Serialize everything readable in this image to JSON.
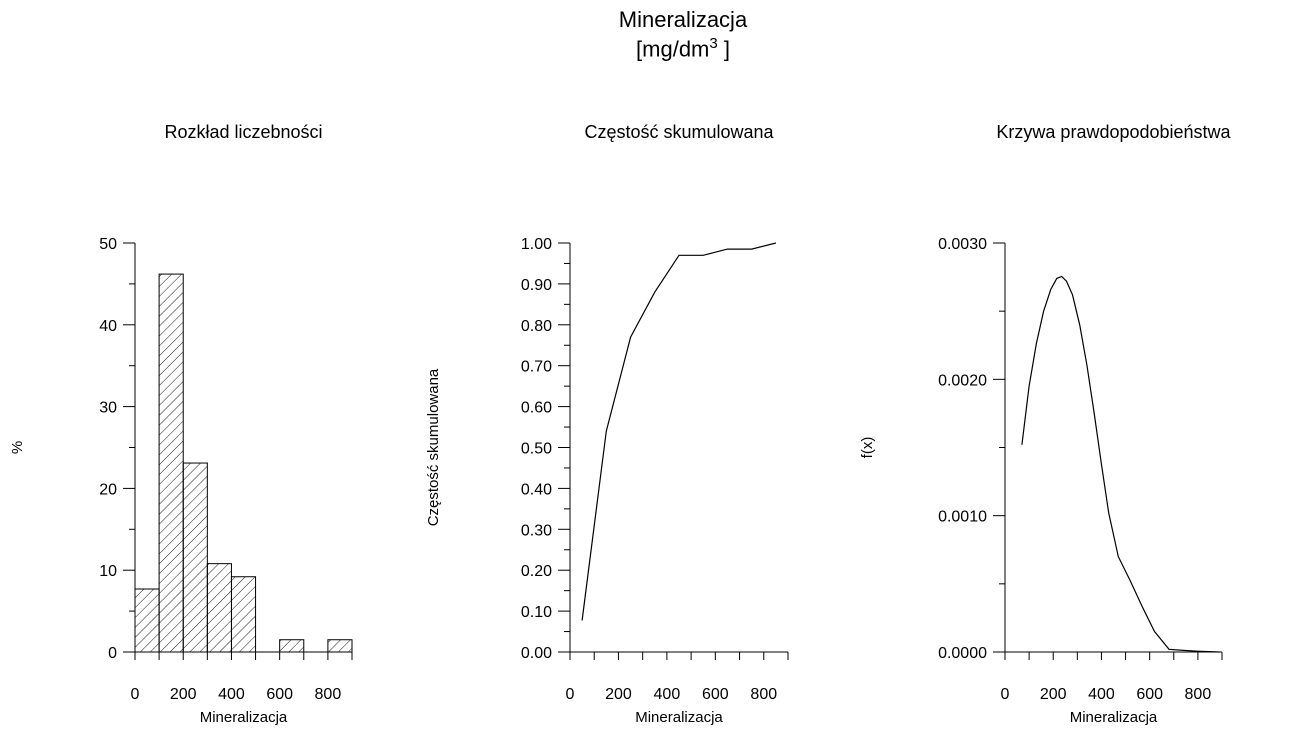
{
  "figure": {
    "title_line1": "Mineralizacja",
    "title_line2_prefix": "[mg/dm",
    "title_line2_sup": "3",
    "title_line2_suffix": " ]"
  },
  "chart_data": [
    {
      "type": "bar",
      "title": "Rozkład liczebności",
      "xlabel": "Mineralizacja",
      "ylabel": "%",
      "bin_edges": [
        0,
        100,
        200,
        300,
        400,
        500,
        600,
        700,
        800,
        900
      ],
      "values": [
        7.7,
        46.2,
        23.1,
        10.8,
        9.2,
        0,
        1.5,
        0,
        1.5
      ],
      "xlim": [
        0,
        900
      ],
      "ylim": [
        0,
        50
      ],
      "xticks": [
        "0",
        "200",
        "400",
        "600",
        "800"
      ],
      "yticks": [
        "0",
        "10",
        "20",
        "30",
        "40",
        "50"
      ],
      "fill": "hatched"
    },
    {
      "type": "line",
      "title": "Częstość skumulowana",
      "xlabel": "Mineralizacja",
      "ylabel": "Częstość skumulowana",
      "x": [
        50,
        150,
        250,
        350,
        450,
        550,
        650,
        750,
        850
      ],
      "y": [
        0.077,
        0.54,
        0.77,
        0.88,
        0.97,
        0.97,
        0.985,
        0.985,
        1.0
      ],
      "xlim": [
        0,
        900
      ],
      "ylim": [
        0,
        1
      ],
      "xticks": [
        "0",
        "200",
        "400",
        "600",
        "800"
      ],
      "yticks": [
        "0.00",
        "0.10",
        "0.20",
        "0.30",
        "0.40",
        "0.50",
        "0.60",
        "0.70",
        "0.80",
        "0.90",
        "1.00"
      ]
    },
    {
      "type": "line",
      "title": "Krzywa prawdopodobieństwa",
      "xlabel": "Mineralizacja",
      "ylabel": "f(x)",
      "x": [
        70,
        100,
        130,
        160,
        190,
        215,
        235,
        255,
        280,
        310,
        340,
        370,
        400,
        430,
        470,
        520,
        570,
        620,
        680,
        740,
        800,
        860,
        890
      ],
      "y": [
        0.00152,
        0.00195,
        0.00226,
        0.0025,
        0.00266,
        0.00274,
        0.002755,
        0.00272,
        0.00262,
        0.0024,
        0.0021,
        0.00175,
        0.00138,
        0.00102,
        0.0007,
        0.00052,
        0.00033,
        0.00015,
        2e-05,
        1.2e-05,
        6e-06,
        2e-06,
        0.0
      ],
      "xlim": [
        0,
        900
      ],
      "ylim": [
        0,
        0.003
      ],
      "xticks": [
        "0",
        "200",
        "400",
        "600",
        "800"
      ],
      "yticks": [
        "0.0000",
        "0.0010",
        "0.0020",
        "0.0030"
      ]
    }
  ]
}
